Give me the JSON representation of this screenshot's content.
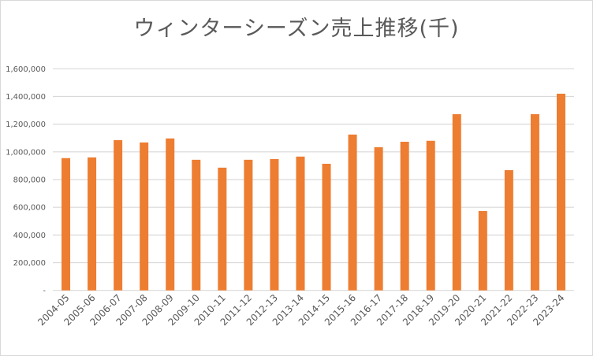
{
  "chart_data": {
    "type": "bar",
    "title": "ウィンターシーズン売上推移(千)",
    "xlabel": "",
    "ylabel": "",
    "ylim": [
      0,
      1600000
    ],
    "yticks": [
      0,
      200000,
      400000,
      600000,
      800000,
      1000000,
      1200000,
      1400000,
      1600000
    ],
    "ytick_labels": [
      "-",
      "200,000",
      "400,000",
      "600,000",
      "800,000",
      "1,000,000",
      "1,200,000",
      "1,400,000",
      "1,600,000"
    ],
    "grid": true,
    "legend": "none",
    "bar_color": "#ED7D31",
    "categories": [
      "2004-05",
      "2005-06",
      "2006-07",
      "2007-08",
      "2008-09",
      "2009-10",
      "2010-11",
      "2011-12",
      "2012-13",
      "2013-14",
      "2014-15",
      "2015-16",
      "2016-17",
      "2017-18",
      "2018-19",
      "2019-20",
      "2020-21",
      "2021-22",
      "2022-23",
      "2023-24"
    ],
    "values": [
      955000,
      960000,
      1085000,
      1068000,
      1097000,
      943000,
      886000,
      943000,
      948000,
      966000,
      914000,
      1125000,
      1034000,
      1073000,
      1080000,
      1272000,
      573000,
      868000,
      1272000,
      1420000
    ]
  }
}
